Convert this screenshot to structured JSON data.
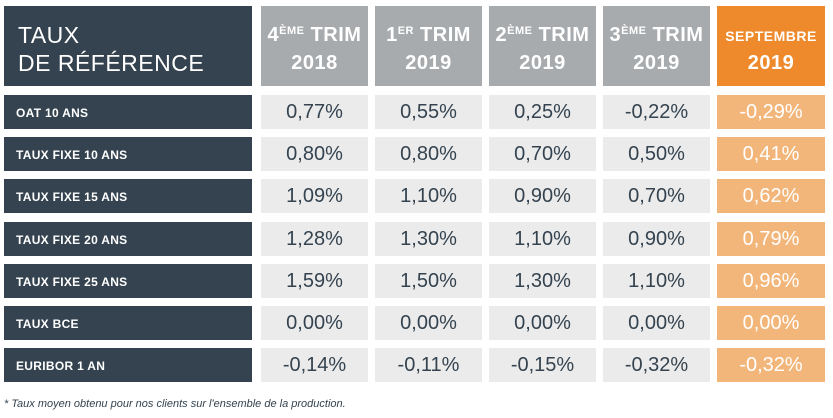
{
  "corner": {
    "line1": "TAUX",
    "line2": "DE RÉFÉRENCE"
  },
  "columns": [
    {
      "num": "4",
      "sup": "ÈME",
      "label": " TRIM",
      "year": "2018"
    },
    {
      "num": "1",
      "sup": "ER",
      "label": " TRIM",
      "year": "2019"
    },
    {
      "num": "2",
      "sup": "ÈME",
      "label": " TRIM",
      "year": "2019"
    },
    {
      "num": "3",
      "sup": "ÈME",
      "label": " TRIM",
      "year": "2019"
    },
    {
      "label": "SEPTEMBRE",
      "year": "2019"
    }
  ],
  "rows": [
    {
      "label": "OAT 10 ANS",
      "values": [
        "0,77%",
        "0,55%",
        "0,25%",
        "-0,22%",
        "-0,29%"
      ]
    },
    {
      "label": "TAUX FIXE 10 ANS",
      "values": [
        "0,80%",
        "0,80%",
        "0,70%",
        "0,50%",
        "0,41%"
      ]
    },
    {
      "label": "TAUX FIXE 15 ANS",
      "values": [
        "1,09%",
        "1,10%",
        "0,90%",
        "0,70%",
        "0,62%"
      ]
    },
    {
      "label": "TAUX FIXE 20 ANS",
      "values": [
        "1,28%",
        "1,30%",
        "1,10%",
        "0,90%",
        "0,79%"
      ]
    },
    {
      "label": "TAUX FIXE 25 ANS",
      "values": [
        "1,59%",
        "1,50%",
        "1,30%",
        "1,10%",
        "0,96%"
      ]
    },
    {
      "label": "TAUX BCE",
      "values": [
        "0,00%",
        "0,00%",
        "0,00%",
        "0,00%",
        "0,00%"
      ]
    },
    {
      "label": "EURIBOR 1 AN",
      "values": [
        "-0,14%",
        "-0,11%",
        "-0,15%",
        "-0,32%",
        "-0,32%"
      ]
    }
  ],
  "footnote": "* Taux moyen obtenu pour nos clients sur l'ensemble de la production.",
  "colors": {
    "dark": "#34434f",
    "header_gray": "#a8abae",
    "cell_gray": "#ebebeb",
    "accent": "#ef8a2c",
    "accent_light": "#f3b67a"
  }
}
